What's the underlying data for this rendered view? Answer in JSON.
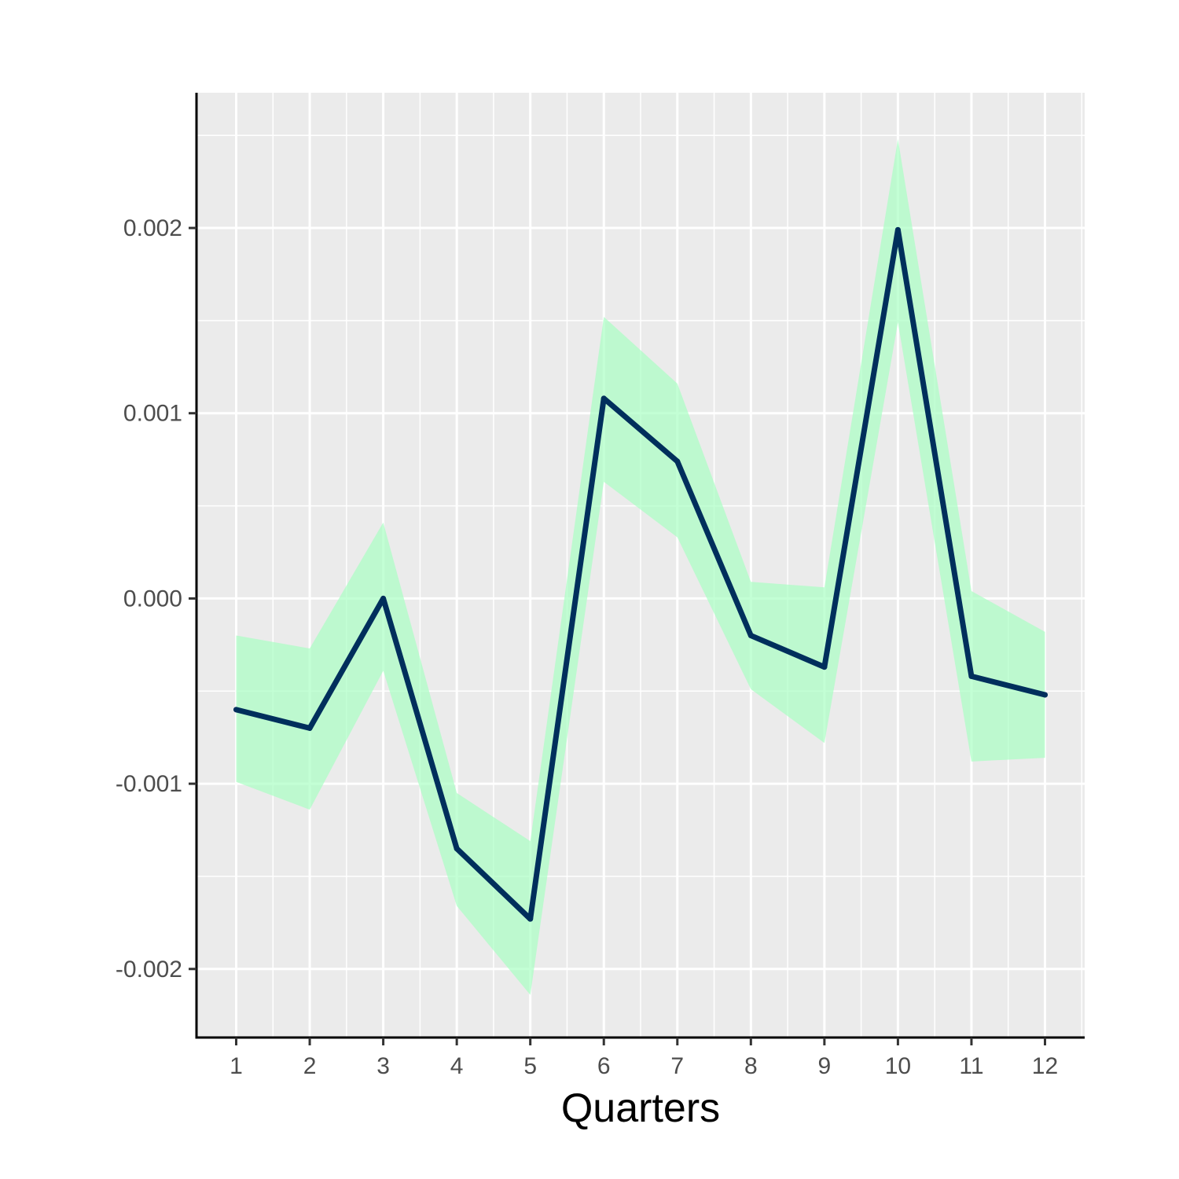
{
  "chart_data": {
    "type": "line",
    "title": "",
    "xlabel": "Quarters",
    "ylabel": "",
    "categories": [
      "1",
      "2",
      "3",
      "4",
      "5",
      "6",
      "7",
      "8",
      "9",
      "10",
      "11",
      "12"
    ],
    "x": [
      1,
      2,
      3,
      4,
      5,
      6,
      7,
      8,
      9,
      10,
      11,
      12
    ],
    "series": [
      {
        "values": [
          -0.0006,
          -0.0007,
          0.0,
          -0.00135,
          -0.00173,
          0.00108,
          0.00074,
          -0.0002,
          -0.00037,
          0.00199,
          -0.00042,
          -0.00052
        ]
      }
    ],
    "band": {
      "lower": [
        -0.00099,
        -0.00114,
        -0.00039,
        -0.00166,
        -0.00214,
        0.00063,
        0.00033,
        -0.00049,
        -0.00078,
        0.00149,
        -0.00088,
        -0.00086
      ],
      "upper": [
        -0.0002,
        -0.00027,
        0.00041,
        -0.00105,
        -0.00131,
        0.00152,
        0.00116,
        9e-05,
        6e-05,
        0.00248,
        4e-05,
        -0.00018
      ]
    },
    "y_ticks": [
      -0.002,
      -0.001,
      0.0,
      0.001,
      0.002
    ],
    "y_tick_labels": [
      "-0.002",
      "-0.001",
      "0.000",
      "0.001",
      "0.002"
    ],
    "xlim": [
      0.46,
      12.54
    ],
    "ylim": [
      -0.00237,
      0.00273
    ],
    "grid": true,
    "legend": "none",
    "colors": {
      "panel_background": "#ebebeb",
      "grid": "#ffffff",
      "line": "#002f5c",
      "band": "#aaffc3",
      "axis": "#000000"
    }
  }
}
